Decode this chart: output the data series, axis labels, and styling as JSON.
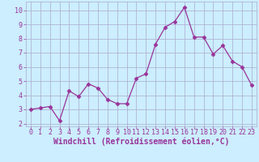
{
  "x": [
    0,
    1,
    2,
    3,
    4,
    5,
    6,
    7,
    8,
    9,
    10,
    11,
    12,
    13,
    14,
    15,
    16,
    17,
    18,
    19,
    20,
    21,
    22,
    23
  ],
  "y": [
    3.0,
    3.1,
    3.2,
    2.2,
    4.3,
    3.9,
    4.8,
    4.5,
    3.7,
    3.4,
    3.4,
    5.2,
    5.5,
    7.6,
    8.8,
    9.2,
    10.2,
    8.1,
    8.1,
    6.9,
    7.5,
    6.4,
    6.0,
    4.7
  ],
  "line_color": "#993399",
  "marker": "D",
  "marker_size": 2.5,
  "bg_color": "#cceeff",
  "grid_color": "#aaaacc",
  "xlabel": "Windchill (Refroidissement éolien,°C)",
  "xlim": [
    -0.5,
    23.5
  ],
  "ylim": [
    1.8,
    10.6
  ],
  "yticks": [
    2,
    3,
    4,
    5,
    6,
    7,
    8,
    9,
    10
  ],
  "xticks": [
    0,
    1,
    2,
    3,
    4,
    5,
    6,
    7,
    8,
    9,
    10,
    11,
    12,
    13,
    14,
    15,
    16,
    17,
    18,
    19,
    20,
    21,
    22,
    23
  ],
  "tick_color": "#993399",
  "tick_fontsize": 6,
  "xlabel_fontsize": 7,
  "label_color": "#993399"
}
